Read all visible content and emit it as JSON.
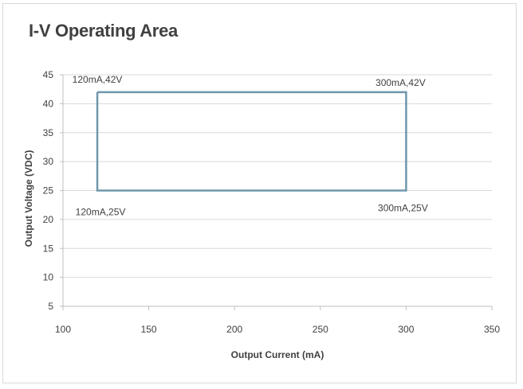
{
  "chart_data": {
    "type": "line",
    "title": "I-V Operating Area",
    "xlabel": "Output Current (mA)",
    "ylabel": "Output Voltage (VDC)",
    "xlim": [
      100,
      350
    ],
    "ylim": [
      5,
      45
    ],
    "xticks": [
      100,
      150,
      200,
      250,
      300,
      350
    ],
    "yticks": [
      5,
      10,
      15,
      20,
      25,
      30,
      35,
      40,
      45
    ],
    "grid": "horizontal",
    "legend": "none",
    "series": [
      {
        "color": "#6f97ab",
        "x": [
          120,
          300,
          300,
          120,
          120
        ],
        "y": [
          42,
          42,
          25,
          25,
          42
        ]
      }
    ],
    "annotations": [
      {
        "text": "120mA,42V",
        "x": 120,
        "y": 42
      },
      {
        "text": "300mA,42V",
        "x": 300,
        "y": 42
      },
      {
        "text": "120mA,25V",
        "x": 120,
        "y": 25
      },
      {
        "text": "300mA,25V",
        "x": 300,
        "y": 25
      }
    ]
  }
}
